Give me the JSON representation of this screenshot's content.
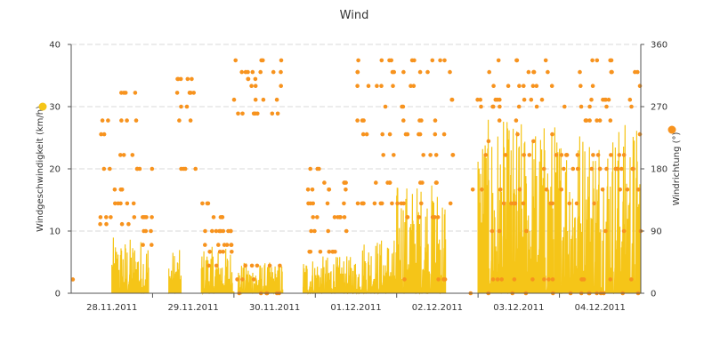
{
  "chart_data": {
    "type": "line",
    "title": "Wind",
    "x_axis": {
      "labels": [
        "28.11.2011",
        "29.11.2011",
        "30.11.2011",
        "01.12.2011",
        "02.12.2011",
        "03.12.2011",
        "04.12.2011"
      ],
      "range_days": [
        0,
        7
      ]
    },
    "y_left": {
      "label": "Windgeschwindigkeit (km/h)",
      "ticks": [
        "0",
        "10",
        "20",
        "30",
        "40"
      ],
      "ylim": [
        0,
        40
      ],
      "marker_color": "#f5c518"
    },
    "y_right": {
      "label": "Windrichtung (°)",
      "ticks": [
        "0",
        "90",
        "180",
        "270",
        "360"
      ],
      "ylim": [
        0,
        360
      ],
      "marker_color": "#f7931e"
    },
    "grid": "horizontal dashed",
    "colors": {
      "speed": "#f5c518",
      "direction": "#f7931e",
      "grid": "#d8d8d8",
      "axis": "#333333"
    },
    "series": [
      {
        "kind": "speed-envelope",
        "note_units": "km/h peaks per time window (approximate)",
        "segments": [
          {
            "from": 0.5,
            "to": 0.95,
            "peak": 9
          },
          {
            "from": 1.2,
            "to": 1.35,
            "peak": 7
          },
          {
            "from": 1.6,
            "to": 2.0,
            "peak": 7.5
          },
          {
            "from": 2.05,
            "to": 2.6,
            "peak": 5
          },
          {
            "from": 2.85,
            "to": 3.55,
            "peak": 6
          },
          {
            "from": 3.55,
            "to": 4.0,
            "peak": 9
          },
          {
            "from": 4.0,
            "to": 4.6,
            "peak": 18
          },
          {
            "from": 5.0,
            "to": 7.0,
            "peak": 28
          }
        ]
      },
      {
        "kind": "direction-points",
        "note_units": "degrees (approximate clusters)",
        "clusters": [
          {
            "from": 0.35,
            "to": 0.8,
            "values": [
              100,
              110,
              130,
              150,
              180,
              200,
              230,
              250,
              290
            ]
          },
          {
            "from": 0.8,
            "to": 1.0,
            "values": [
              70,
              90,
              110,
              180
            ]
          },
          {
            "from": 1.3,
            "to": 1.55,
            "values": [
              250,
              270,
              290,
              310,
              180
            ]
          },
          {
            "from": 1.6,
            "to": 2.0,
            "values": [
              40,
              60,
              70,
              90,
              110,
              130
            ]
          },
          {
            "from": 2.0,
            "to": 2.6,
            "values": [
              0,
              20,
              40,
              260,
              280,
              300,
              310,
              320,
              337
            ]
          },
          {
            "from": 2.9,
            "to": 3.4,
            "values": [
              60,
              90,
              110,
              130,
              150,
              160,
              180
            ]
          },
          {
            "from": 3.5,
            "to": 4.0,
            "values": [
              130,
              160,
              200,
              230,
              250,
              270,
              300,
              320,
              337
            ]
          },
          {
            "from": 4.0,
            "to": 4.7,
            "values": [
              20,
              110,
              130,
              160,
              200,
              230,
              250,
              270,
              280,
              300,
              320,
              337
            ]
          },
          {
            "from": 4.9,
            "to": 7.0,
            "values": [
              0,
              20,
              90,
              130,
              150,
              180,
              200,
              220,
              230,
              250,
              270,
              280,
              300,
              320,
              337
            ]
          }
        ]
      }
    ]
  }
}
